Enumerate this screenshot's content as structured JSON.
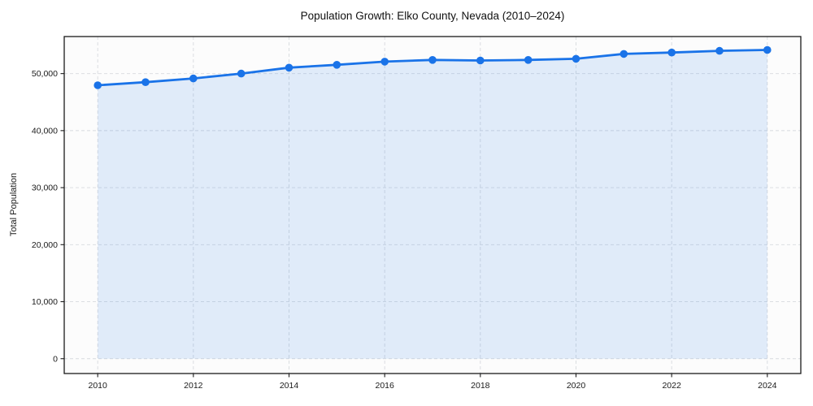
{
  "chart_data": {
    "type": "line",
    "title": "Population Growth: Elko County, Nevada (2010–2024)",
    "ylabel": "Total Population",
    "xlabel": "",
    "x": [
      2010,
      2011,
      2012,
      2013,
      2014,
      2015,
      2016,
      2017,
      2018,
      2019,
      2020,
      2021,
      2022,
      2023,
      2024
    ],
    "series": [
      {
        "name": "Total Population",
        "values": [
          47950,
          48500,
          49150,
          50000,
          51050,
          51550,
          52100,
          52400,
          52300,
          52400,
          52600,
          53450,
          53700,
          54000,
          54150
        ]
      }
    ],
    "xticks": {
      "values": [
        2010,
        2012,
        2014,
        2016,
        2018,
        2020,
        2022,
        2024
      ],
      "labels": [
        "2010",
        "2012",
        "2014",
        "2016",
        "2018",
        "2020",
        "2022",
        "2024"
      ]
    },
    "yticks": {
      "values": [
        0,
        10000,
        20000,
        30000,
        40000,
        50000
      ],
      "labels": [
        "0",
        "10,000",
        "20,000",
        "30,000",
        "40,000",
        "50,000"
      ]
    },
    "xlim": [
      2009.3,
      2024.7
    ],
    "ylim": [
      -2600,
      56500
    ],
    "grid": true,
    "grid_style": "dashed",
    "legend": "none",
    "marker": "circle",
    "area_fill": true,
    "fill_baseline": 0,
    "colors": {
      "line": "#1a73e8",
      "marker": "#1a73e8",
      "fill": "#1a73e8",
      "fill_opacity": 0.12,
      "grid": "#d7dade",
      "spine": "#1a1a1a",
      "tick_label": "#1a1a1a",
      "plot_bg": "#fcfcfc",
      "fig_bg": "#ffffff"
    }
  }
}
